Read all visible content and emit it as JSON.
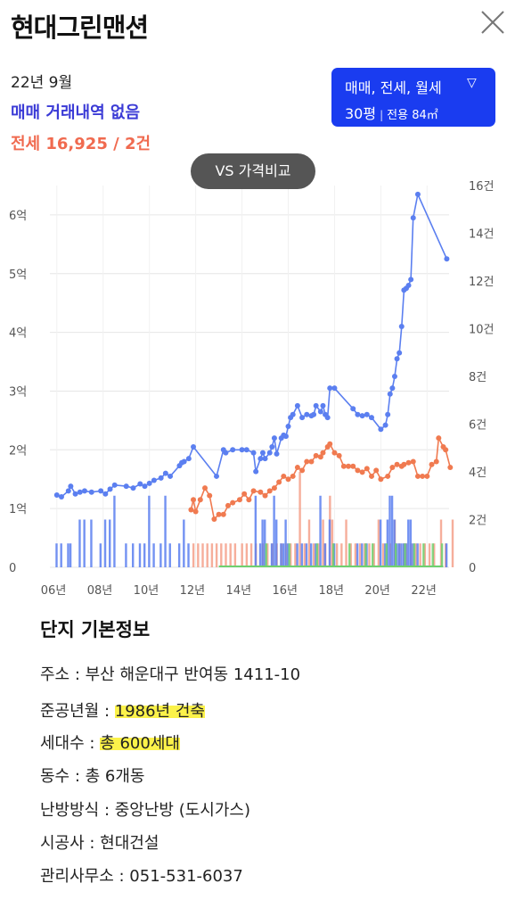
{
  "header": {
    "title": "현대그린맨션"
  },
  "summary": {
    "period": "22년 9월",
    "sale_text": "매매 거래내역 없음",
    "lease_text": "전세 16,925 / 2건"
  },
  "filter": {
    "types_label": "매매, 전세, 월세",
    "size_label": "30평",
    "area_label": "전용 84㎡"
  },
  "compare_button": "VS 가격비교",
  "chart_data": {
    "type": "line",
    "x_ticks": [
      "06년",
      "08년",
      "10년",
      "12년",
      "14년",
      "16년",
      "18년",
      "20년",
      "22년"
    ],
    "y_left_ticks": [
      "0",
      "1억",
      "2억",
      "3억",
      "4억",
      "5억",
      "6억"
    ],
    "y_right_ticks": [
      "0",
      "2건",
      "4건",
      "6건",
      "8건",
      "10건",
      "12건",
      "14건",
      "16건"
    ],
    "y_left_range": [
      0,
      6.5
    ],
    "y_right_range": [
      0,
      16
    ],
    "x_range": [
      2005.7,
      2022.95
    ],
    "colors": {
      "sale": "#5b7ff0",
      "lease": "#f07a50",
      "lease_bar": "#f4a08a",
      "monthly_bar": "#6fd06f",
      "grid": "#e6e6e6"
    },
    "series": [
      {
        "key": "sale",
        "points": [
          [
            2006.0,
            1.23
          ],
          [
            2006.2,
            1.2
          ],
          [
            2006.5,
            1.3
          ],
          [
            2006.6,
            1.38
          ],
          [
            2006.8,
            1.25
          ],
          [
            2007.0,
            1.28
          ],
          [
            2007.2,
            1.3
          ],
          [
            2007.5,
            1.28
          ],
          [
            2007.9,
            1.3
          ],
          [
            2008.1,
            1.25
          ],
          [
            2008.3,
            1.33
          ],
          [
            2008.5,
            1.4
          ],
          [
            2009.0,
            1.38
          ],
          [
            2009.3,
            1.35
          ],
          [
            2009.6,
            1.42
          ],
          [
            2009.8,
            1.38
          ],
          [
            2010.0,
            1.43
          ],
          [
            2010.2,
            1.48
          ],
          [
            2010.5,
            1.52
          ],
          [
            2010.7,
            1.6
          ],
          [
            2010.9,
            1.55
          ],
          [
            2011.3,
            1.73
          ],
          [
            2011.4,
            1.78
          ],
          [
            2011.5,
            1.8
          ],
          [
            2011.7,
            1.85
          ],
          [
            2011.9,
            2.05
          ],
          [
            2012.9,
            1.55
          ],
          [
            2013.2,
            2.0
          ],
          [
            2013.3,
            1.95
          ],
          [
            2013.6,
            2.0
          ],
          [
            2014.0,
            2.0
          ],
          [
            2014.2,
            2.0
          ],
          [
            2014.5,
            1.95
          ],
          [
            2014.6,
            1.63
          ],
          [
            2014.8,
            1.85
          ],
          [
            2014.9,
            1.95
          ],
          [
            2015.0,
            1.85
          ],
          [
            2015.2,
            1.95
          ],
          [
            2015.3,
            2.05
          ],
          [
            2015.4,
            2.2
          ],
          [
            2015.5,
            1.93
          ],
          [
            2015.7,
            2.2
          ],
          [
            2015.8,
            2.25
          ],
          [
            2015.9,
            2.23
          ],
          [
            2016.0,
            2.4
          ],
          [
            2016.1,
            2.55
          ],
          [
            2016.2,
            2.6
          ],
          [
            2016.4,
            2.75
          ],
          [
            2016.6,
            2.55
          ],
          [
            2016.8,
            2.6
          ],
          [
            2017.0,
            2.58
          ],
          [
            2017.1,
            2.6
          ],
          [
            2017.2,
            2.75
          ],
          [
            2017.4,
            2.65
          ],
          [
            2017.5,
            2.75
          ],
          [
            2017.6,
            2.6
          ],
          [
            2017.7,
            2.55
          ],
          [
            2017.8,
            3.05
          ],
          [
            2018.0,
            3.05
          ],
          [
            2018.8,
            2.7
          ],
          [
            2019.0,
            2.6
          ],
          [
            2019.2,
            2.58
          ],
          [
            2019.4,
            2.6
          ],
          [
            2019.6,
            2.55
          ],
          [
            2020.0,
            2.35
          ],
          [
            2020.2,
            2.42
          ],
          [
            2020.3,
            2.6
          ],
          [
            2020.4,
            2.95
          ],
          [
            2020.5,
            3.05
          ],
          [
            2020.6,
            3.25
          ],
          [
            2020.7,
            3.55
          ],
          [
            2020.8,
            3.65
          ],
          [
            2020.9,
            4.1
          ],
          [
            2021.0,
            4.72
          ],
          [
            2021.1,
            4.75
          ],
          [
            2021.2,
            4.8
          ],
          [
            2021.3,
            4.9
          ],
          [
            2021.4,
            5.95
          ],
          [
            2021.6,
            6.35
          ],
          [
            2022.85,
            5.25
          ]
        ]
      },
      {
        "key": "lease",
        "points": [
          [
            2011.8,
            0.98
          ],
          [
            2011.9,
            1.15
          ],
          [
            2012.0,
            0.95
          ],
          [
            2012.2,
            1.15
          ],
          [
            2012.4,
            1.35
          ],
          [
            2012.6,
            1.22
          ],
          [
            2012.8,
            0.82
          ],
          [
            2013.0,
            0.9
          ],
          [
            2013.2,
            0.9
          ],
          [
            2013.4,
            1.05
          ],
          [
            2013.6,
            1.1
          ],
          [
            2013.9,
            1.15
          ],
          [
            2014.1,
            1.25
          ],
          [
            2014.3,
            1.15
          ],
          [
            2014.5,
            1.3
          ],
          [
            2014.8,
            1.28
          ],
          [
            2015.0,
            1.22
          ],
          [
            2015.2,
            1.3
          ],
          [
            2015.4,
            1.35
          ],
          [
            2015.6,
            1.45
          ],
          [
            2015.8,
            1.55
          ],
          [
            2016.0,
            1.5
          ],
          [
            2016.2,
            1.55
          ],
          [
            2016.4,
            1.7
          ],
          [
            2016.6,
            1.65
          ],
          [
            2016.8,
            1.8
          ],
          [
            2017.0,
            1.8
          ],
          [
            2017.2,
            1.9
          ],
          [
            2017.4,
            1.88
          ],
          [
            2017.5,
            1.95
          ],
          [
            2017.7,
            2.05
          ],
          [
            2017.8,
            2.1
          ],
          [
            2018.0,
            1.95
          ],
          [
            2018.2,
            1.9
          ],
          [
            2018.4,
            1.72
          ],
          [
            2018.6,
            1.72
          ],
          [
            2018.8,
            1.72
          ],
          [
            2019.0,
            1.65
          ],
          [
            2019.2,
            1.62
          ],
          [
            2019.4,
            1.68
          ],
          [
            2019.6,
            1.55
          ],
          [
            2019.8,
            1.65
          ],
          [
            2020.0,
            1.5
          ],
          [
            2020.3,
            1.55
          ],
          [
            2020.5,
            1.7
          ],
          [
            2020.7,
            1.75
          ],
          [
            2020.9,
            1.72
          ],
          [
            2021.0,
            1.75
          ],
          [
            2021.2,
            1.78
          ],
          [
            2021.4,
            1.8
          ],
          [
            2021.6,
            1.55
          ],
          [
            2021.8,
            1.55
          ],
          [
            2022.0,
            1.55
          ],
          [
            2022.2,
            1.75
          ],
          [
            2022.4,
            1.8
          ],
          [
            2022.5,
            2.2
          ],
          [
            2022.7,
            2.05
          ],
          [
            2022.8,
            2.0
          ],
          [
            2023.0,
            1.7
          ]
        ]
      }
    ],
    "sale_bars": [
      [
        2006.0,
        1
      ],
      [
        2006.2,
        1
      ],
      [
        2006.5,
        1
      ],
      [
        2006.6,
        1
      ],
      [
        2007.0,
        2
      ],
      [
        2007.2,
        2
      ],
      [
        2007.5,
        2
      ],
      [
        2007.9,
        1
      ],
      [
        2008.1,
        2
      ],
      [
        2008.3,
        2
      ],
      [
        2008.5,
        3
      ],
      [
        2009.0,
        1
      ],
      [
        2009.3,
        1
      ],
      [
        2009.6,
        1
      ],
      [
        2009.8,
        1
      ],
      [
        2010.0,
        3
      ],
      [
        2010.2,
        1
      ],
      [
        2010.5,
        1
      ],
      [
        2010.7,
        3
      ],
      [
        2010.9,
        1
      ],
      [
        2011.3,
        1
      ],
      [
        2011.5,
        2
      ],
      [
        2011.7,
        1
      ],
      [
        2014.6,
        3
      ],
      [
        2014.8,
        1
      ],
      [
        2014.9,
        2
      ],
      [
        2015.0,
        2
      ],
      [
        2015.3,
        1
      ],
      [
        2015.4,
        3
      ],
      [
        2015.5,
        2
      ],
      [
        2015.7,
        1
      ],
      [
        2015.8,
        1
      ],
      [
        2015.9,
        2
      ],
      [
        2016.0,
        1
      ],
      [
        2016.4,
        1
      ],
      [
        2016.6,
        1
      ],
      [
        2016.8,
        1
      ],
      [
        2017.0,
        1
      ],
      [
        2017.2,
        1
      ],
      [
        2017.4,
        3
      ],
      [
        2017.6,
        1
      ],
      [
        2017.8,
        2
      ],
      [
        2018.0,
        1
      ],
      [
        2019.0,
        1
      ],
      [
        2019.2,
        1
      ],
      [
        2019.4,
        1
      ],
      [
        2020.0,
        2
      ],
      [
        2020.2,
        1
      ],
      [
        2020.3,
        2
      ],
      [
        2020.4,
        3
      ],
      [
        2020.5,
        3
      ],
      [
        2020.6,
        2
      ],
      [
        2020.7,
        1
      ],
      [
        2020.8,
        1
      ],
      [
        2020.9,
        1
      ],
      [
        2021.0,
        1
      ],
      [
        2021.1,
        1
      ],
      [
        2021.2,
        2
      ],
      [
        2021.3,
        2
      ],
      [
        2021.4,
        1
      ],
      [
        2021.6,
        1
      ],
      [
        2022.85,
        1
      ]
    ],
    "lease_bars": [
      [
        2011.8,
        1
      ],
      [
        2012.0,
        1
      ],
      [
        2012.2,
        1
      ],
      [
        2012.4,
        1
      ],
      [
        2012.6,
        1
      ],
      [
        2012.8,
        1
      ],
      [
        2013.0,
        1
      ],
      [
        2013.2,
        1
      ],
      [
        2013.4,
        1
      ],
      [
        2013.6,
        1
      ],
      [
        2013.9,
        1
      ],
      [
        2014.1,
        1
      ],
      [
        2014.3,
        1
      ],
      [
        2014.5,
        1
      ],
      [
        2014.8,
        1
      ],
      [
        2015.0,
        1
      ],
      [
        2015.2,
        1
      ],
      [
        2015.4,
        1
      ],
      [
        2015.6,
        1
      ],
      [
        2015.8,
        1
      ],
      [
        2016.0,
        1
      ],
      [
        2016.2,
        1
      ],
      [
        2016.4,
        4
      ],
      [
        2016.6,
        1
      ],
      [
        2016.8,
        2
      ],
      [
        2017.0,
        1
      ],
      [
        2017.2,
        1
      ],
      [
        2017.4,
        2
      ],
      [
        2017.5,
        1
      ],
      [
        2017.7,
        3
      ],
      [
        2017.8,
        2
      ],
      [
        2018.0,
        1
      ],
      [
        2018.2,
        1
      ],
      [
        2018.4,
        2
      ],
      [
        2018.6,
        1
      ],
      [
        2018.8,
        1
      ],
      [
        2019.0,
        1
      ],
      [
        2019.2,
        1
      ],
      [
        2019.4,
        1
      ],
      [
        2019.6,
        1
      ],
      [
        2019.8,
        2
      ],
      [
        2020.0,
        1
      ],
      [
        2020.3,
        1
      ],
      [
        2020.5,
        2
      ],
      [
        2020.7,
        1
      ],
      [
        2020.9,
        1
      ],
      [
        2021.0,
        1
      ],
      [
        2021.2,
        1
      ],
      [
        2021.4,
        1
      ],
      [
        2021.6,
        1
      ],
      [
        2021.8,
        1
      ],
      [
        2022.0,
        1
      ],
      [
        2022.2,
        1
      ],
      [
        2022.5,
        2
      ],
      [
        2022.7,
        1
      ],
      [
        2023.0,
        2
      ]
    ],
    "monthly_bars": [
      [
        2015.0,
        1
      ],
      [
        2016.0,
        1
      ],
      [
        2017.2,
        1
      ],
      [
        2017.9,
        1
      ],
      [
        2018.6,
        1
      ],
      [
        2019.3,
        1
      ],
      [
        2019.6,
        1
      ],
      [
        2020.2,
        1
      ],
      [
        2020.6,
        1
      ],
      [
        2021.0,
        1
      ],
      [
        2021.4,
        1
      ],
      [
        2021.8,
        1
      ],
      [
        2022.2,
        1
      ],
      [
        2022.6,
        1
      ]
    ]
  },
  "basic_info": {
    "title": "단지 기본정보",
    "address": "주소 : 부산 해운대구 반여동 1411-10",
    "completion_label": "준공년월 : ",
    "completion_value": "1986년 건축",
    "households_label": "세대수 : ",
    "households_value": "총 600세대",
    "buildings": "동수 : 총 6개동",
    "heating": "난방방식 : 중앙난방 (도시가스)",
    "builder": "시공사 : 현대건설",
    "office": "관리사무소 : 051-531-6037"
  }
}
